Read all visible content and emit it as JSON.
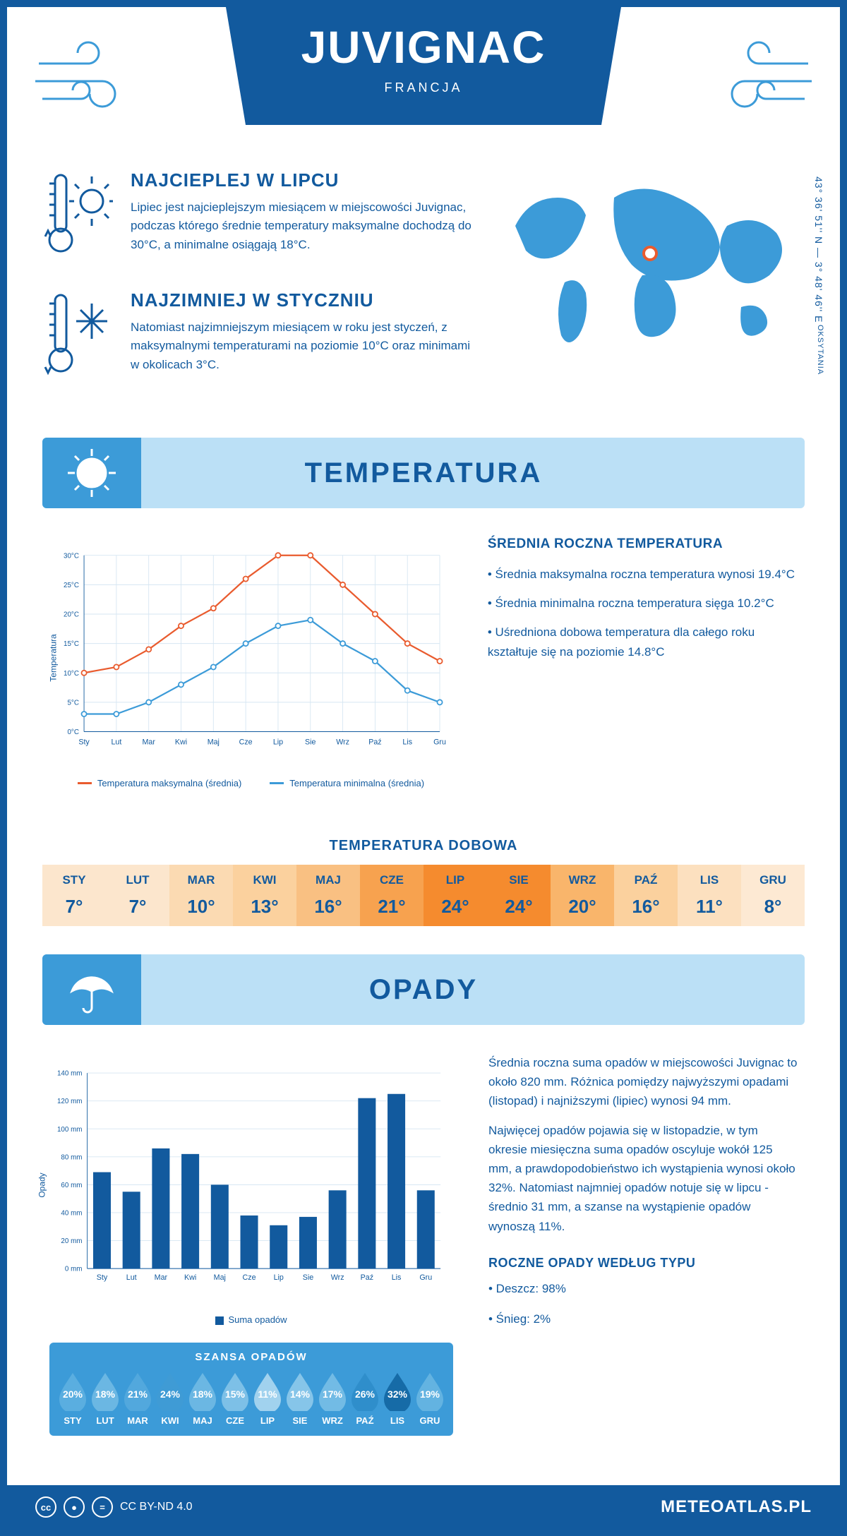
{
  "header": {
    "city": "JUVIGNAC",
    "country": "FRANCJA"
  },
  "intro": {
    "warm": {
      "title": "NAJCIEPLEJ W LIPCU",
      "text": "Lipiec jest najcieplejszym miesiącem w miejscowości Juvignac, podczas którego średnie temperatury maksymalne dochodzą do 30°C, a minimalne osiągają 18°C."
    },
    "cold": {
      "title": "NAJZIMNIEJ W STYCZNIU",
      "text": "Natomiast najzimniejszym miesiącem w roku jest styczeń, z maksymalnymi temperaturami na poziomie 10°C oraz minimami w okolicach 3°C."
    },
    "coords": "43° 36' 51'' N — 3° 48' 46'' E",
    "region": "OKSYTANIA"
  },
  "sections": {
    "temp": "TEMPERATURA",
    "precip": "OPADY"
  },
  "months": [
    "Sty",
    "Lut",
    "Mar",
    "Kwi",
    "Maj",
    "Cze",
    "Lip",
    "Sie",
    "Wrz",
    "Paź",
    "Lis",
    "Gru"
  ],
  "months_upper": [
    "STY",
    "LUT",
    "MAR",
    "KWI",
    "MAJ",
    "CZE",
    "LIP",
    "SIE",
    "WRZ",
    "PAŹ",
    "LIS",
    "GRU"
  ],
  "temp_chart": {
    "type": "line",
    "ylabel": "Temperatura",
    "ylim": [
      0,
      30
    ],
    "ytick_step": 5,
    "ytick_labels": [
      "0°C",
      "5°C",
      "10°C",
      "15°C",
      "20°C",
      "25°C",
      "30°C"
    ],
    "grid_color": "#d6e6f2",
    "axis_color": "#125a9e",
    "series": {
      "max": {
        "label": "Temperatura maksymalna (średnia)",
        "color": "#e95b2e",
        "values": [
          10,
          11,
          14,
          18,
          21,
          26,
          30,
          30,
          25,
          20,
          15,
          12
        ]
      },
      "min": {
        "label": "Temperatura minimalna (średnia)",
        "color": "#3c9bd8",
        "values": [
          3,
          3,
          5,
          8,
          11,
          15,
          18,
          19,
          15,
          12,
          7,
          5
        ]
      }
    }
  },
  "annual_temp": {
    "title": "ŚREDNIA ROCZNA TEMPERATURA",
    "b1": "• Średnia maksymalna roczna temperatura wynosi 19.4°C",
    "b2": "• Średnia minimalna roczna temperatura sięga 10.2°C",
    "b3": "• Uśredniona dobowa temperatura dla całego roku kształtuje się na poziomie 14.8°C"
  },
  "daily": {
    "title": "TEMPERATURA DOBOWA",
    "values": [
      "7°",
      "7°",
      "10°",
      "13°",
      "16°",
      "21°",
      "24°",
      "24°",
      "20°",
      "16°",
      "11°",
      "8°"
    ],
    "colors": [
      "#fce6cd",
      "#fce6cd",
      "#fbdab2",
      "#fbd19e",
      "#f9c082",
      "#f7a24f",
      "#f58b2e",
      "#f58b2e",
      "#f9b56b",
      "#fbd19e",
      "#fce0bf",
      "#fde9d3"
    ]
  },
  "precip_chart": {
    "type": "bar",
    "ylabel": "Opady",
    "ylim": [
      0,
      140
    ],
    "ytick_step": 20,
    "ytick_labels": [
      "0 mm",
      "20 mm",
      "40 mm",
      "60 mm",
      "80 mm",
      "100 mm",
      "120 mm",
      "140 mm"
    ],
    "bar_color": "#125a9e",
    "grid_color": "#d6e6f2",
    "values": [
      69,
      55,
      86,
      82,
      60,
      38,
      31,
      37,
      56,
      122,
      125,
      56
    ],
    "legend": "Suma opadów"
  },
  "precip_text": {
    "p1": "Średnia roczna suma opadów w miejscowości Juvignac to około 820 mm. Różnica pomiędzy najwyższymi opadami (listopad) i najniższymi (lipiec) wynosi 94 mm.",
    "p2": "Najwięcej opadów pojawia się w listopadzie, w tym okresie miesięczna suma opadów oscyluje wokół 125 mm, a prawdopodobieństwo ich wystąpienia wynosi około 32%. Natomiast najmniej opadów notuje się w lipcu - średnio 31 mm, a szanse na wystąpienie opadów wynoszą 11%."
  },
  "chance": {
    "title": "SZANSA OPADÓW",
    "values": [
      "20%",
      "18%",
      "21%",
      "24%",
      "18%",
      "15%",
      "11%",
      "14%",
      "17%",
      "26%",
      "32%",
      "19%"
    ],
    "colors": [
      "#5aaee0",
      "#6bb7e3",
      "#52a8dd",
      "#3f9bd5",
      "#6bb7e3",
      "#7dc0e7",
      "#a1d2ee",
      "#86c5e9",
      "#72bbe5",
      "#2f8ecb",
      "#166ba7",
      "#63b3e1"
    ]
  },
  "precip_type": {
    "title": "ROCZNE OPADY WEDŁUG TYPU",
    "l1": "• Deszcz: 98%",
    "l2": "• Śnieg: 2%"
  },
  "footer": {
    "license": "CC BY-ND 4.0",
    "site": "METEOATLAS.PL"
  }
}
